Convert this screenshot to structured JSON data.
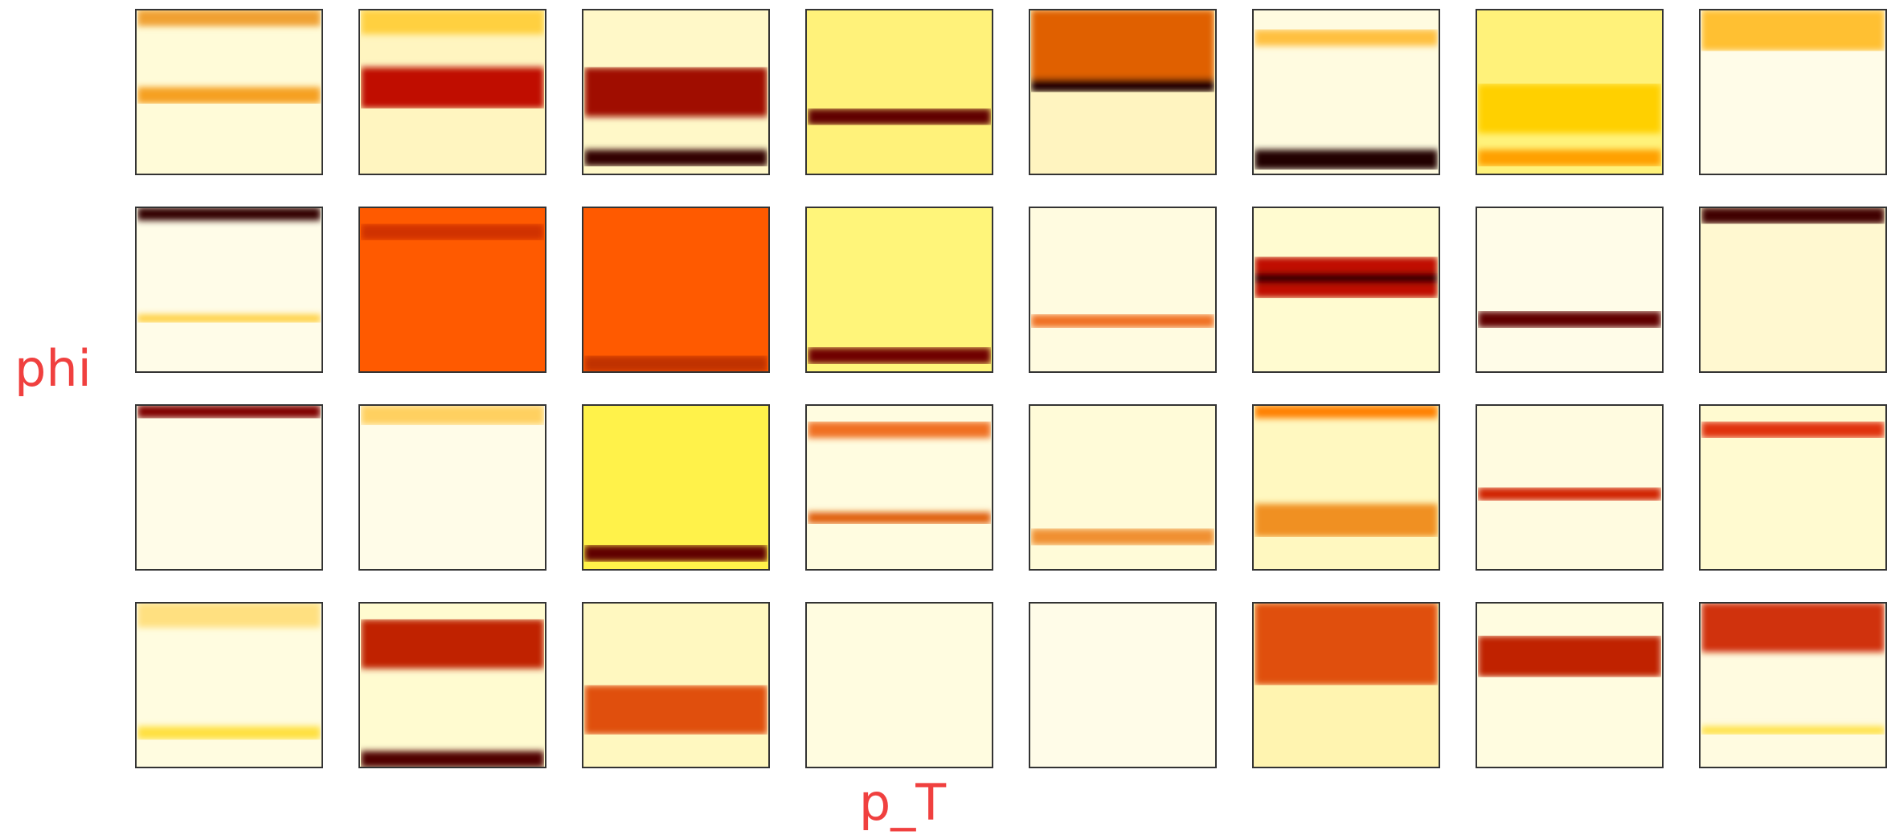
{
  "y_label": "phi",
  "x_label": "p_T"
}
